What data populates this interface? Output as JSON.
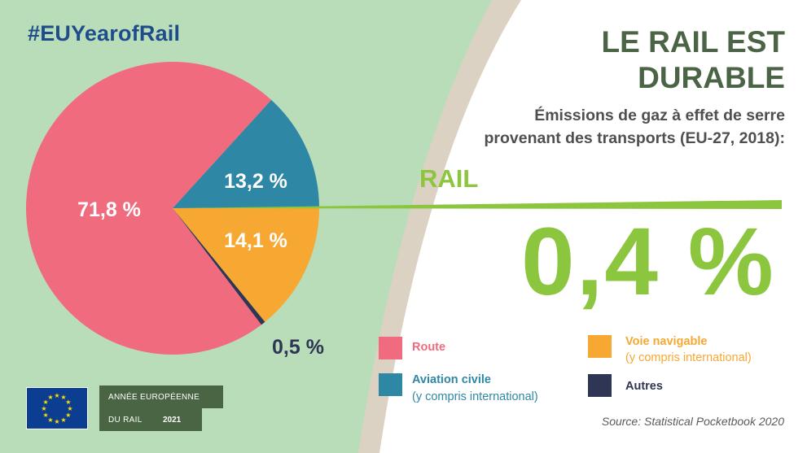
{
  "hashtag": "#EUYearofRail",
  "title_line1": "LE RAIL EST",
  "title_line2": "DURABLE",
  "subtitle_line1": "Émissions de gaz à effet de serre",
  "subtitle_line2": "provenant des transports (EU-27, 2018):",
  "rail_label": "RAIL",
  "rail_value": "0,4 %",
  "source": "Source: Statistical Pocketbook 2020",
  "badge": {
    "line1": "ANNÉE EUROPÉENNE",
    "line2": "DU RAIL",
    "year": "2021"
  },
  "legend": [
    {
      "label": "Route",
      "sub": "",
      "color": "#f06b7e",
      "text_color": "#f06b7e"
    },
    {
      "label": "Aviation civile",
      "sub": "(y compris international)",
      "color": "#2e87a5",
      "text_color": "#2e87a5"
    },
    {
      "label": "Voie navigable",
      "sub": "(y compris international)",
      "color": "#f7a833",
      "text_color": "#f7a833"
    },
    {
      "label": "Autres",
      "sub": "",
      "color": "#2f3555",
      "text_color": "#2f3555"
    }
  ],
  "chart_data": {
    "type": "pie",
    "title": "Émissions de gaz à effet de serre provenant des transports (EU-27, 2018)",
    "unit": "%",
    "slices": [
      {
        "name": "Aviation civile",
        "value": 13.2,
        "label": "13,2 %",
        "color": "#2e87a5",
        "label_color": "#ffffff"
      },
      {
        "name": "Voie navigable",
        "value": 14.1,
        "label": "14,1 %",
        "color": "#f7a833",
        "label_color": "#ffffff"
      },
      {
        "name": "Autres",
        "value": 0.5,
        "label": "0,5 %",
        "color": "#2f3555",
        "label_color": "#2f3555"
      },
      {
        "name": "Route",
        "value": 71.8,
        "label": "71,8 %",
        "color": "#f06b7e",
        "label_color": "#ffffff"
      }
    ],
    "highlight": {
      "name": "Rail",
      "value": 0.4,
      "label": "0,4 %",
      "color": "#8cc63f"
    }
  },
  "colors": {
    "green_panel": "#b9ddb8",
    "beige_band": "#dcd2c3",
    "rail_green": "#8cc63f",
    "title_green": "#4b6445"
  }
}
